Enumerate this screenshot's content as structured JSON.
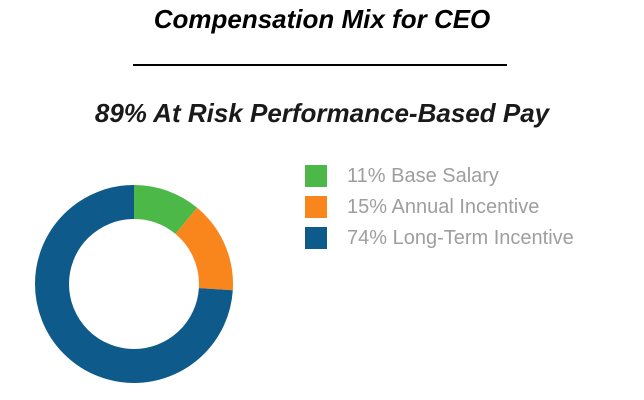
{
  "header": {
    "title": "Compensation Mix for CEO",
    "subtitle": "89% At Risk Performance-Based Pay"
  },
  "chart_data": {
    "type": "pie",
    "subtype": "donut",
    "title": "Compensation Mix for CEO",
    "subtitle": "89% At Risk Performance-Based Pay",
    "labels": [
      "Base Salary",
      "Annual Incentive",
      "Long-Term Incentive"
    ],
    "values": [
      11,
      15,
      74
    ],
    "colors": [
      "#4cb848",
      "#f8861d",
      "#0e5a8a"
    ],
    "legend_labels": [
      "11% Base Salary",
      "15% Annual Incentive",
      "74% Long-Term Incentive"
    ],
    "legend_position": "right",
    "legend_text_color": "#9e9e9e",
    "start_angle_deg": 0,
    "direction": "clockwise",
    "donut_hole_ratio": 0.66,
    "divider_color": "#000000"
  }
}
